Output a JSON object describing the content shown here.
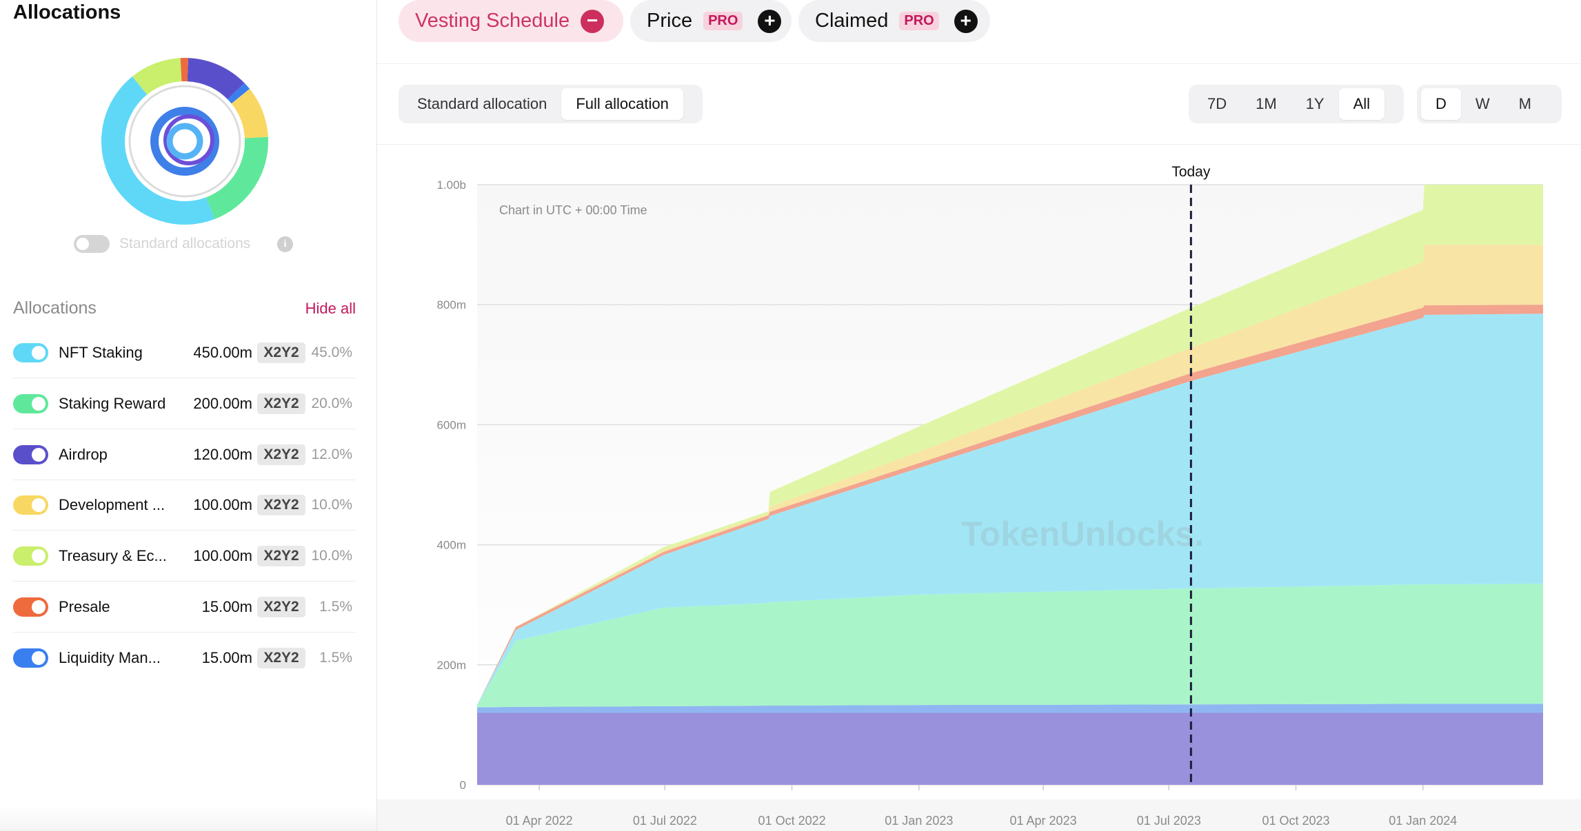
{
  "sidebar": {
    "title": "Allocations",
    "toggle_label": "Standard allocations",
    "list_title": "Allocations",
    "hide_all": "Hide all",
    "items": [
      {
        "name": "NFT Staking",
        "amount": "450.00m",
        "token": "X2Y2",
        "share": 45,
        "share_label": "45.0%",
        "color": "#5fd8f7"
      },
      {
        "name": "Staking Reward",
        "amount": "200.00m",
        "token": "X2Y2",
        "share": 20,
        "share_label": "20.0%",
        "color": "#5fe89c"
      },
      {
        "name": "Airdrop",
        "amount": "120.00m",
        "token": "X2Y2",
        "share": 12,
        "share_label": "12.0%",
        "color": "#5a4fca"
      },
      {
        "name": "Development ...",
        "amount": "100.00m",
        "token": "X2Y2",
        "share": 10,
        "share_label": "10.0%",
        "color": "#f8d862"
      },
      {
        "name": "Treasury & Ec...",
        "amount": "100.00m",
        "token": "X2Y2",
        "share": 10,
        "share_label": "10.0%",
        "color": "#c9ef6c"
      },
      {
        "name": "Presale",
        "amount": "15.00m",
        "token": "X2Y2",
        "share": 1.5,
        "share_label": "1.5%",
        "color": "#ee6b3d"
      },
      {
        "name": "Liquidity Man...",
        "amount": "15.00m",
        "token": "X2Y2",
        "share": 1.5,
        "share_label": "1.5%",
        "color": "#3a7ff0"
      }
    ]
  },
  "tabs": [
    {
      "label": "Vesting Schedule"
    },
    {
      "label": "Price",
      "badge": "PRO"
    },
    {
      "label": "Claimed",
      "badge": "PRO"
    }
  ],
  "allocation_modes": [
    "Standard allocation",
    "Full allocation"
  ],
  "ranges": [
    "7D",
    "1M",
    "1Y",
    "All"
  ],
  "intervals": [
    "D",
    "W",
    "M"
  ],
  "chart_data": {
    "type": "stacked_area",
    "note": "Chart in UTC + 00:00 Time",
    "watermark": "TokenUnlocks.",
    "marker": {
      "label": "Today",
      "x": "2023-07-17"
    },
    "x": [
      "2022-02-15",
      "2022-03-15",
      "2022-06-30",
      "2022-09-14",
      "2022-09-15",
      "2023-01-01",
      "2023-07-17",
      "2024-01-01",
      "2024-01-02",
      "2024-03-28"
    ],
    "series": [
      {
        "color": "#9a91dc",
        "values": [
          120,
          120,
          120,
          120,
          120,
          120,
          120,
          120,
          120,
          120
        ]
      },
      {
        "color": "#90b6f2",
        "values": [
          9,
          10,
          11,
          12,
          12,
          13,
          14,
          15,
          15,
          15
        ]
      },
      {
        "color": "#a9f5c9",
        "values": [
          4,
          110,
          164,
          171,
          172,
          184,
          193,
          199,
          199,
          200
        ]
      },
      {
        "color": "#a2e6f6",
        "values": [
          0,
          18,
          88,
          140,
          144,
          211,
          346,
          444,
          449,
          450
        ]
      },
      {
        "color": "#f2a48e",
        "values": [
          0,
          5,
          5,
          6,
          7,
          8,
          13,
          17,
          16,
          15
        ]
      },
      {
        "color": "#f8e4a4",
        "values": [
          0,
          0,
          3,
          3,
          8,
          19,
          42,
          76,
          101,
          100
        ]
      },
      {
        "color": "#e0f6a6",
        "values": [
          0,
          0,
          5,
          4,
          25,
          42,
          67,
          87,
          100,
          100
        ]
      }
    ],
    "xlim": [
      "2022-02-15",
      "2024-03-28"
    ],
    "xticks": [
      {
        "value": "2022-04-01",
        "label": "01 Apr 2022"
      },
      {
        "value": "2022-07-01",
        "label": "01 Jul 2022"
      },
      {
        "value": "2022-10-01",
        "label": "01 Oct 2022"
      },
      {
        "value": "2023-01-01",
        "label": "01 Jan 2023"
      },
      {
        "value": "2023-04-01",
        "label": "01 Apr 2023"
      },
      {
        "value": "2023-07-01",
        "label": "01 Jul 2023"
      },
      {
        "value": "2023-10-01",
        "label": "01 Oct 2023"
      },
      {
        "value": "2024-01-01",
        "label": "01 Jan 2024"
      }
    ],
    "ylim": [
      0,
      1000
    ],
    "yticks": [
      0,
      {
        "value": 200,
        "label": "200m"
      },
      {
        "value": 400,
        "label": "400m"
      },
      {
        "value": 600,
        "label": "600m"
      },
      {
        "value": 800,
        "label": "800m"
      },
      {
        "value": 1000,
        "label": "1.00b"
      }
    ],
    "grid": true
  }
}
